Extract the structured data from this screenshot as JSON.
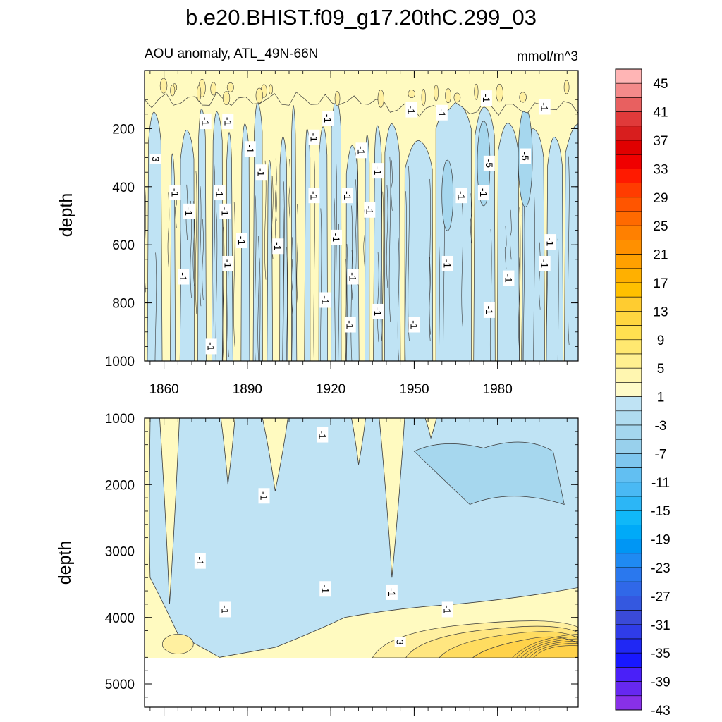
{
  "chart_data": {
    "type": "heatmap",
    "title": "b.e20.BHIST.f09_g17.20thC.299_03",
    "subtitle_left": "AOU anomaly, ATL_49N-66N",
    "subtitle_right": "mmol/m^3",
    "colors": {
      "negative_fill": "#bfe3f4",
      "negative_deep": "#a6d7ee",
      "positive_fill": "#fffac0",
      "positive_mid": "#fff0a0",
      "positive_deep": "#ffd24a",
      "contour": "#3a3a3a"
    },
    "x_ticks": {
      "labels": [
        "1860",
        "1890",
        "1920",
        "1950",
        "1980"
      ],
      "values": [
        1860,
        1890,
        1920,
        1950,
        1980
      ]
    },
    "xlim": [
      1853,
      2009
    ],
    "panels": [
      {
        "name": "upper",
        "ylabel": "depth",
        "ylim": [
          1000,
          0
        ],
        "y_ticks": {
          "labels": [
            "200",
            "400",
            "600",
            "800",
            "1000"
          ],
          "values": [
            200,
            400,
            600,
            800,
            1000
          ]
        },
        "contour_labels": [
          {
            "text": "-1",
            "x": 1875,
            "y": 175
          },
          {
            "text": "-1",
            "x": 1883,
            "y": 175
          },
          {
            "text": "3",
            "x": 1857,
            "y": 305
          },
          {
            "text": "-1",
            "x": 1891,
            "y": 270
          },
          {
            "text": "-1",
            "x": 1895,
            "y": 350
          },
          {
            "text": "-1",
            "x": 1864,
            "y": 420
          },
          {
            "text": "-1",
            "x": 1880,
            "y": 420
          },
          {
            "text": "-1",
            "x": 1869,
            "y": 485
          },
          {
            "text": "-1",
            "x": 1882,
            "y": 485
          },
          {
            "text": "-1",
            "x": 1888,
            "y": 585
          },
          {
            "text": "-1",
            "x": 1901,
            "y": 605
          },
          {
            "text": "-1",
            "x": 1867,
            "y": 710
          },
          {
            "text": "-1",
            "x": 1883,
            "y": 665
          },
          {
            "text": "-1",
            "x": 1914,
            "y": 430
          },
          {
            "text": "-1",
            "x": 1919,
            "y": 165
          },
          {
            "text": "-1",
            "x": 1914,
            "y": 230
          },
          {
            "text": "-1",
            "x": 1931,
            "y": 275
          },
          {
            "text": "-1",
            "x": 1926,
            "y": 430
          },
          {
            "text": "-1",
            "x": 1922,
            "y": 575
          },
          {
            "text": "-1",
            "x": 1934,
            "y": 480
          },
          {
            "text": "-1",
            "x": 1937,
            "y": 345
          },
          {
            "text": "-1",
            "x": 1949,
            "y": 135
          },
          {
            "text": "-1",
            "x": 1960,
            "y": 145
          },
          {
            "text": "-1",
            "x": 1976,
            "y": 95
          },
          {
            "text": "-1",
            "x": 1997,
            "y": 125
          },
          {
            "text": "-5",
            "x": 1977,
            "y": 320
          },
          {
            "text": "-5",
            "x": 1990,
            "y": 295
          },
          {
            "text": "-1",
            "x": 1975,
            "y": 420
          },
          {
            "text": "-1",
            "x": 1967,
            "y": 430
          },
          {
            "text": "-1",
            "x": 1962,
            "y": 665
          },
          {
            "text": "-1",
            "x": 1984,
            "y": 715
          },
          {
            "text": "-1",
            "x": 1999,
            "y": 590
          },
          {
            "text": "-1",
            "x": 1997,
            "y": 665
          },
          {
            "text": "-1",
            "x": 1928,
            "y": 710
          },
          {
            "text": "-1",
            "x": 1918,
            "y": 790
          },
          {
            "text": "-1",
            "x": 1927,
            "y": 875
          },
          {
            "text": "-1",
            "x": 1937,
            "y": 830
          },
          {
            "text": "-1",
            "x": 1950,
            "y": 875
          },
          {
            "text": "-1",
            "x": 1977,
            "y": 825
          },
          {
            "text": "-1",
            "x": 1877,
            "y": 950
          }
        ]
      },
      {
        "name": "lower",
        "ylabel": "depth",
        "ylim": [
          5350,
          1000
        ],
        "y_ticks": {
          "labels": [
            "1000",
            "2000",
            "3000",
            "4000",
            "5000"
          ],
          "values": [
            1000,
            2000,
            3000,
            4000,
            5000
          ]
        },
        "contour_labels": [
          {
            "text": "-1",
            "x": 1917,
            "y": 1250
          },
          {
            "text": "-1",
            "x": 1896,
            "y": 2170
          },
          {
            "text": "-1",
            "x": 1873,
            "y": 3150
          },
          {
            "text": "-1",
            "x": 1882,
            "y": 3880
          },
          {
            "text": "-1",
            "x": 1918,
            "y": 3570
          },
          {
            "text": "-1",
            "x": 1942,
            "y": 3620
          },
          {
            "text": "-1",
            "x": 1962,
            "y": 3880
          },
          {
            "text": "3",
            "x": 1945,
            "y": 4370
          }
        ]
      }
    ],
    "colorbar": {
      "labels": [
        "45",
        "41",
        "37",
        "33",
        "29",
        "25",
        "21",
        "17",
        "13",
        "9",
        "5",
        "1",
        "-3",
        "-7",
        "-11",
        "-15",
        "-19",
        "-23",
        "-27",
        "-31",
        "-35",
        "-39",
        "-43"
      ],
      "colors": [
        "#ffb5b5",
        "#f48a8a",
        "#e86060",
        "#e03a3a",
        "#d81e1e",
        "#e00000",
        "#f00000",
        "#ff1a00",
        "#ff3c00",
        "#ff5500",
        "#ff6a00",
        "#ff8000",
        "#ff9000",
        "#ffa000",
        "#ffb000",
        "#ffc000",
        "#ffcc30",
        "#ffd640",
        "#ffe050",
        "#ffe870",
        "#fff090",
        "#fff6b0",
        "#fffbc8",
        "#bfe3f4",
        "#b0dcf0",
        "#a4d6ee",
        "#98d0ec",
        "#7ec6ee",
        "#62bff2",
        "#4ab9f4",
        "#2cb6f6",
        "#10b8f8",
        "#00aaf8",
        "#0096f4",
        "#1f8af2",
        "#2a78ee",
        "#3068e8",
        "#3458e0",
        "#3a4ad8",
        "#2f3ce8",
        "#2028f4",
        "#1818ff",
        "#4a20f8",
        "#6628f0",
        "#8830e8"
      ]
    }
  }
}
